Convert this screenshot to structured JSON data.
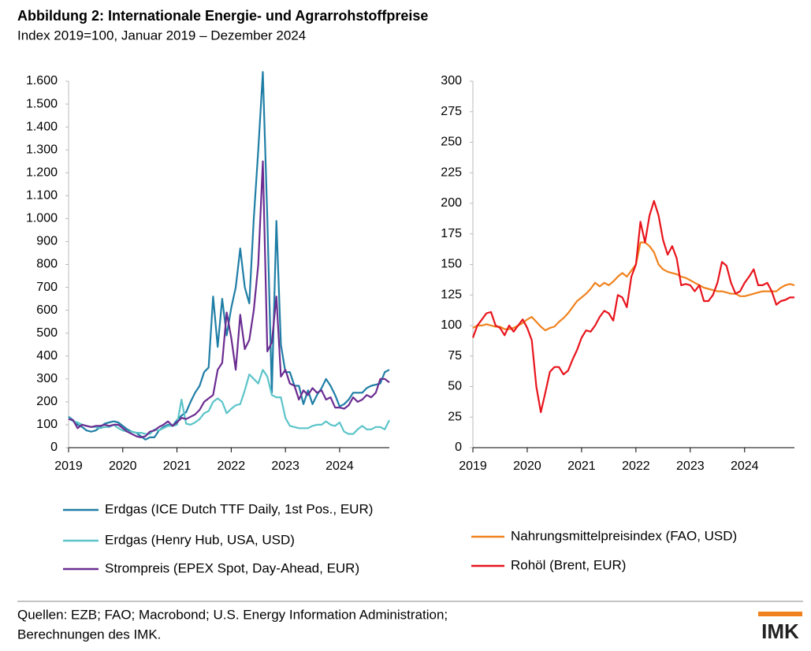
{
  "header": {
    "title": "Abbildung 2: Internationale Energie- und Agrarrohstoffpreise",
    "subtitle": "Index 2019=100, Januar 2019 – Dezember 2024"
  },
  "chart_data": [
    {
      "type": "line",
      "legend": "bottom",
      "grid": false,
      "x": [
        2019,
        2019.083,
        2019.167,
        2019.25,
        2019.333,
        2019.417,
        2019.5,
        2019.583,
        2019.667,
        2019.75,
        2019.833,
        2019.917,
        2020,
        2020.083,
        2020.167,
        2020.25,
        2020.333,
        2020.417,
        2020.5,
        2020.583,
        2020.667,
        2020.75,
        2020.833,
        2020.917,
        2021,
        2021.083,
        2021.167,
        2021.25,
        2021.333,
        2021.417,
        2021.5,
        2021.583,
        2021.667,
        2021.75,
        2021.833,
        2021.917,
        2022,
        2022.083,
        2022.167,
        2022.25,
        2022.333,
        2022.417,
        2022.5,
        2022.583,
        2022.667,
        2022.75,
        2022.833,
        2022.917,
        2023,
        2023.083,
        2023.167,
        2023.25,
        2023.333,
        2023.417,
        2023.5,
        2023.583,
        2023.667,
        2023.75,
        2023.833,
        2023.917,
        2024,
        2024.083,
        2024.167,
        2024.25,
        2024.333,
        2024.417,
        2024.5,
        2024.583,
        2024.667,
        2024.75,
        2024.833,
        2024.917
      ],
      "xlim": [
        2019,
        2024.917
      ],
      "xticks": [
        2019,
        2020,
        2021,
        2022,
        2023,
        2024
      ],
      "ylim": [
        0,
        1600
      ],
      "yticks": [
        0,
        100,
        200,
        300,
        400,
        500,
        600,
        700,
        800,
        900,
        {
          "value": 1000,
          "label": "1.000"
        },
        {
          "value": 1100,
          "label": "1.100"
        },
        {
          "value": 1200,
          "label": "1.200"
        },
        {
          "value": 1300,
          "label": "1.300"
        },
        {
          "value": 1400,
          "label": "1.400"
        },
        {
          "value": 1500,
          "label": "1.500"
        },
        {
          "value": 1600,
          "label": "1.600"
        }
      ],
      "series": [
        {
          "name": "Erdgas (ICE Dutch TTF Daily, 1st Pos., EUR)",
          "color": "#1f7ea6",
          "values": [
            135,
            120,
            100,
            90,
            75,
            70,
            75,
            90,
            105,
            110,
            115,
            110,
            95,
            80,
            70,
            65,
            50,
            35,
            45,
            45,
            75,
            90,
            100,
            95,
            120,
            140,
            155,
            200,
            240,
            270,
            330,
            350,
            660,
            440,
            650,
            490,
            610,
            700,
            870,
            700,
            630,
            1000,
            1300,
            1640,
            1000,
            240,
            990,
            450,
            330,
            330,
            270,
            270,
            190,
            250,
            190,
            230,
            260,
            300,
            270,
            230,
            180,
            190,
            210,
            240,
            240,
            240,
            260,
            270,
            275,
            280,
            330,
            340
          ]
        },
        {
          "name": "Erdgas (Henry Hub, USA, USD)",
          "color": "#5bc4c9",
          "values": [
            130,
            115,
            110,
            100,
            95,
            90,
            90,
            85,
            90,
            90,
            100,
            85,
            75,
            70,
            70,
            65,
            65,
            60,
            60,
            80,
            75,
            85,
            95,
            95,
            100,
            210,
            105,
            100,
            110,
            125,
            150,
            160,
            200,
            215,
            200,
            150,
            170,
            185,
            190,
            250,
            320,
            300,
            280,
            340,
            310,
            230,
            220,
            220,
            130,
            95,
            90,
            85,
            85,
            85,
            95,
            100,
            100,
            115,
            100,
            95,
            110,
            70,
            60,
            60,
            80,
            95,
            80,
            80,
            90,
            90,
            80,
            120
          ]
        },
        {
          "name": "Strompreis (EPEX Spot, Day-Ahead, EUR)",
          "color": "#6b2c91",
          "values": [
            125,
            120,
            85,
            100,
            95,
            90,
            95,
            95,
            100,
            95,
            100,
            100,
            85,
            70,
            60,
            50,
            45,
            50,
            70,
            75,
            90,
            100,
            115,
            95,
            110,
            130,
            125,
            135,
            145,
            165,
            200,
            215,
            230,
            340,
            370,
            590,
            480,
            340,
            580,
            430,
            470,
            600,
            800,
            1250,
            420,
            460,
            660,
            310,
            340,
            280,
            270,
            210,
            250,
            230,
            260,
            240,
            250,
            210,
            220,
            175,
            175,
            170,
            185,
            220,
            200,
            210,
            230,
            220,
            240,
            300,
            300,
            285
          ]
        }
      ]
    },
    {
      "type": "line",
      "legend": "bottom",
      "grid": false,
      "x": [
        2019,
        2019.083,
        2019.167,
        2019.25,
        2019.333,
        2019.417,
        2019.5,
        2019.583,
        2019.667,
        2019.75,
        2019.833,
        2019.917,
        2020,
        2020.083,
        2020.167,
        2020.25,
        2020.333,
        2020.417,
        2020.5,
        2020.583,
        2020.667,
        2020.75,
        2020.833,
        2020.917,
        2021,
        2021.083,
        2021.167,
        2021.25,
        2021.333,
        2021.417,
        2021.5,
        2021.583,
        2021.667,
        2021.75,
        2021.833,
        2021.917,
        2022,
        2022.083,
        2022.167,
        2022.25,
        2022.333,
        2022.417,
        2022.5,
        2022.583,
        2022.667,
        2022.75,
        2022.833,
        2022.917,
        2023,
        2023.083,
        2023.167,
        2023.25,
        2023.333,
        2023.417,
        2023.5,
        2023.583,
        2023.667,
        2023.75,
        2023.833,
        2023.917,
        2024,
        2024.083,
        2024.167,
        2024.25,
        2024.333,
        2024.417,
        2024.5,
        2024.583,
        2024.667,
        2024.75,
        2024.833,
        2024.917
      ],
      "xlim": [
        2019,
        2024.917
      ],
      "xticks": [
        2019,
        2020,
        2021,
        2022,
        2023,
        2024
      ],
      "ylim": [
        0,
        300
      ],
      "yticks": [
        0,
        25,
        50,
        75,
        100,
        125,
        150,
        175,
        200,
        225,
        250,
        275,
        300
      ],
      "series": [
        {
          "name": "Nahrungsmittelpreisindex (FAO, USD)",
          "color": "#f0821e",
          "values": [
            98,
            100,
            100,
            101,
            100,
            99,
            99,
            97,
            97,
            98,
            100,
            102,
            105,
            107,
            103,
            99,
            96,
            98,
            99,
            103,
            106,
            110,
            115,
            120,
            123,
            126,
            130,
            135,
            132,
            135,
            133,
            136,
            140,
            143,
            140,
            145,
            150,
            168,
            168,
            165,
            160,
            150,
            146,
            144,
            143,
            142,
            140,
            139,
            137,
            135,
            133,
            131,
            130,
            129,
            128,
            128,
            127,
            126,
            126,
            124,
            124,
            125,
            126,
            127,
            128,
            128,
            128,
            128,
            131,
            133,
            134,
            133
          ]
        },
        {
          "name": "Rohöl (Brent, EUR)",
          "color": "#e8141c",
          "values": [
            90,
            100,
            105,
            110,
            111,
            100,
            98,
            92,
            100,
            95,
            100,
            105,
            98,
            88,
            50,
            29,
            45,
            62,
            66,
            66,
            60,
            63,
            72,
            80,
            90,
            96,
            95,
            100,
            107,
            112,
            110,
            104,
            125,
            123,
            115,
            140,
            150,
            185,
            168,
            190,
            202,
            190,
            170,
            158,
            165,
            155,
            133,
            134,
            133,
            128,
            133,
            120,
            120,
            125,
            135,
            152,
            149,
            135,
            126,
            128,
            135,
            140,
            146,
            133,
            133,
            135,
            128,
            117,
            120,
            121,
            123,
            123
          ]
        }
      ]
    }
  ],
  "footer": {
    "source": [
      "Quellen: EZB; FAO; Macrobond; U.S. Energy Information Administration;",
      "Berechnungen des IMK."
    ],
    "logo": "IMK"
  }
}
